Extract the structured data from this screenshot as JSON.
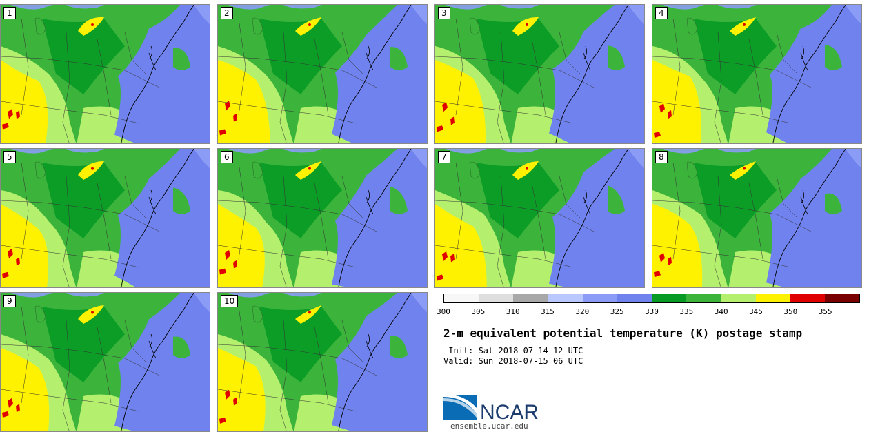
{
  "panels": [
    {
      "label": "1"
    },
    {
      "label": "2"
    },
    {
      "label": "3"
    },
    {
      "label": "4"
    },
    {
      "label": "5"
    },
    {
      "label": "6"
    },
    {
      "label": "7"
    },
    {
      "label": "8"
    },
    {
      "label": "9"
    },
    {
      "label": "10"
    }
  ],
  "colorbar": {
    "ticks": [
      "300",
      "305",
      "310",
      "315",
      "320",
      "325",
      "330",
      "335",
      "340",
      "345",
      "350",
      "355"
    ],
    "colors": [
      "#f7f7f7",
      "#dedede",
      "#a8a8a8",
      "#b9c8ff",
      "#8a9cf5",
      "#6f82ee",
      "#079a25",
      "#3cb43c",
      "#b4f06e",
      "#fff200",
      "#e00000",
      "#7a0000"
    ]
  },
  "title": "2-m equivalent potential temperature (K) postage stamp",
  "init": " Init: Sat 2018-07-14 12 UTC",
  "valid": "Valid: Sun 2018-07-15 06 UTC",
  "logo_text": "NCAR",
  "site": "ensemble.ucar.edu",
  "map_colors": {
    "ocean": "#6f82ee",
    "ocean_light": "#8a9cf5",
    "green_dark": "#079a25",
    "green_mid": "#3cb43c",
    "green_light": "#b4f06e",
    "yellow": "#fff200",
    "red": "#e00000",
    "lake": "#3cb43c"
  }
}
